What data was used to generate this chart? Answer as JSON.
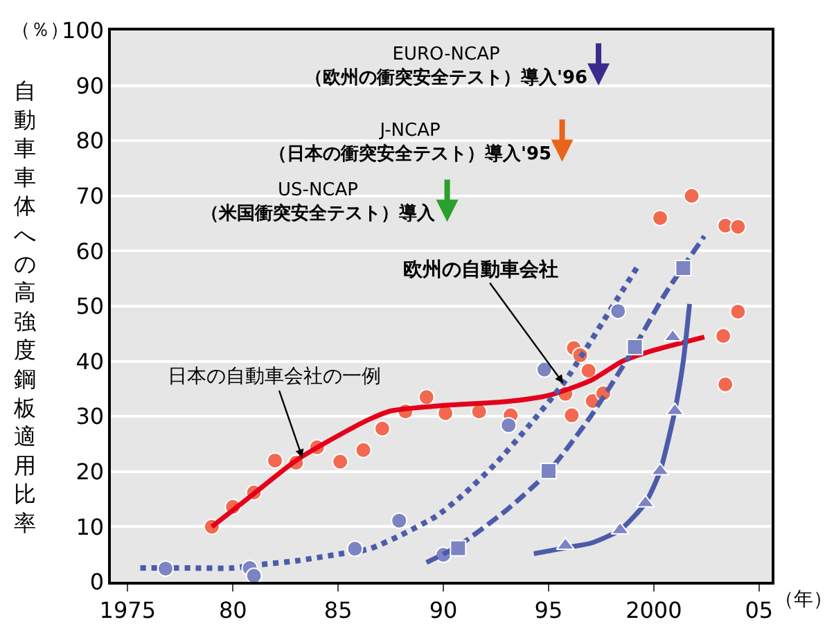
{
  "chart_data": {
    "type": "scatter",
    "xlabel": "（年）",
    "ylabel": "自動車車体への高強度鋼板適用比率",
    "xlim": [
      1974.2,
      2005.6
    ],
    "ylim": [
      0,
      100
    ],
    "xticks": [
      1975,
      {
        "value": 1980,
        "label": "80"
      },
      {
        "value": 1985,
        "label": "85"
      },
      {
        "value": 1990,
        "label": "90"
      },
      {
        "value": 1995,
        "label": "95"
      },
      2000,
      {
        "value": 2005,
        "label": "05"
      }
    ],
    "yticks": [
      0,
      10,
      20,
      30,
      40,
      50,
      60,
      70,
      80,
      90,
      100
    ],
    "grid": "y",
    "series": [
      {
        "marker": "circle",
        "color": "#f2694f",
        "x": [
          1979.0,
          1980.0,
          1981.0,
          1982.0,
          1983.0,
          1984.0,
          1985.1,
          1986.2,
          1987.1,
          1988.2,
          1989.2,
          1990.1,
          1991.7,
          1993.2,
          1995.8,
          1996.1,
          1996.2,
          1996.5,
          1996.9,
          1997.1,
          1997.6,
          2000.3,
          2001.8,
          2003.4,
          2004.0,
          2004.0,
          2003.3,
          2003.4
        ],
        "values": [
          10,
          13.6,
          16.2,
          22,
          21.6,
          24.4,
          21.8,
          23.9,
          27.8,
          30.9,
          33.5,
          30.6,
          30.9,
          30.2,
          34.1,
          30.2,
          42.4,
          41.1,
          38.3,
          32.8,
          34.2,
          66,
          70,
          64.6,
          64.4,
          49,
          44.6,
          35.8
        ]
      },
      {
        "type": "line",
        "line_style": "solid",
        "color": "#e3001b",
        "x": [
          1979.0,
          1981,
          1983,
          1985,
          1986.5,
          1987.5,
          1990,
          1993,
          1995,
          1997,
          1998.5,
          2000,
          2002.4
        ],
        "values": [
          10,
          16,
          22,
          26.5,
          29.5,
          31,
          32,
          32.7,
          33.8,
          36.5,
          40,
          42,
          44.4
        ]
      },
      {
        "type": "line",
        "line_style": "dotted",
        "color": "#4c5caa",
        "x": [
          1975.6,
          1978,
          1980,
          1981,
          1983,
          1985,
          1986.5,
          1988,
          1989.7,
          1991,
          1992.5,
          1994,
          1995.8,
          1997.8,
          1999.2
        ],
        "values": [
          2.5,
          2.5,
          2.5,
          3,
          3.8,
          5,
          6,
          8.5,
          12,
          16,
          21.5,
          28,
          36.5,
          48.5,
          57
        ]
      },
      {
        "marker": "circle",
        "color": "#7c84c4",
        "x": [
          1976.8,
          1980.8,
          1981.0,
          1985.8,
          1987.9,
          1990.0,
          1993.1,
          1994.8,
          1998.3
        ],
        "values": [
          2.4,
          2.5,
          1.1,
          6,
          11.1,
          4.9,
          28.4,
          38.5,
          49.1
        ]
      },
      {
        "type": "line",
        "line_style": "dashed",
        "color": "#4c5caa",
        "x": [
          1989.2,
          1990.7,
          1993,
          1995,
          1997,
          1999,
          2000.5,
          2002.4
        ],
        "values": [
          3.5,
          6.5,
          13,
          20,
          30,
          42,
          52,
          62.7
        ]
      },
      {
        "marker": "square",
        "color": "#7c84c4",
        "x": [
          1990.7,
          1995.0,
          1999.1,
          2001.4
        ],
        "values": [
          6.1,
          20.1,
          42.6,
          56.9
        ]
      },
      {
        "type": "line",
        "line_style": "solid",
        "color": "#4c5caa",
        "x": [
          1994.3,
          1996,
          1997,
          1998.4,
          1999.6,
          2000.3,
          2001,
          2001.4,
          2001.7
        ],
        "values": [
          5.1,
          6.3,
          7,
          9.4,
          14.3,
          20.1,
          31,
          40,
          50.4
        ]
      },
      {
        "marker": "triangle",
        "color": "#7c84c4",
        "x": [
          1995.8,
          1998.4,
          1999.6,
          2000.3,
          2001.0,
          2000.9
        ],
        "values": [
          6.6,
          9.4,
          14.3,
          20.1,
          31,
          44.4
        ]
      }
    ],
    "annotations": [
      "EURO-NCAP\n（欧州の衝突安全テスト）導入'96",
      "J-NCAP\n（日本の衝突安全テスト）導入'95",
      "US-NCAP\n（米国衝突安全テスト）導入",
      {
        "text": "日本の自動車会社の一例",
        "x": 1983.3,
        "y": 22.5
      },
      {
        "text": "\n欧州の自動車会社",
        "x": 1995.7,
        "y": 36
      },
      "（％）"
    ]
  }
}
